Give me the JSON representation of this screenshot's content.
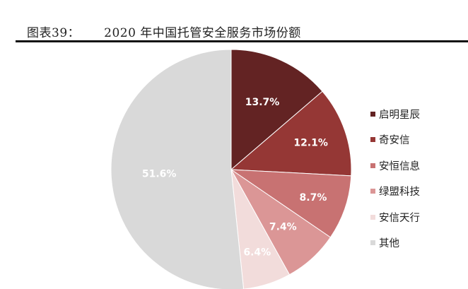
{
  "header": {
    "figure_no": "图表39：",
    "title": "2020 年中国托管安全服务市场份额"
  },
  "chart_data": {
    "type": "pie",
    "title": "2020 年中国托管安全服务市场份额",
    "start_angle_deg": 0,
    "direction": "clockwise",
    "categories": [
      "启明星辰",
      "奇安信",
      "安恒信息",
      "绿盟科技",
      "安信天行",
      "其他"
    ],
    "values": [
      13.7,
      12.1,
      8.7,
      7.4,
      6.4,
      51.6
    ],
    "labels": [
      "13.7%",
      "12.1%",
      "8.7%",
      "7.4%",
      "6.4%",
      "51.6%"
    ],
    "colors": [
      "#632323",
      "#953735",
      "#c87272",
      "#db9696",
      "#f2dcdb",
      "#d9d9d9"
    ],
    "legend_position": "right"
  },
  "legend": {
    "items": [
      {
        "label": "启明星辰",
        "color": "#632323"
      },
      {
        "label": "奇安信",
        "color": "#953735"
      },
      {
        "label": "安恒信息",
        "color": "#c87272"
      },
      {
        "label": "绿盟科技",
        "color": "#db9696"
      },
      {
        "label": "安信天行",
        "color": "#f2dcdb"
      },
      {
        "label": "其他",
        "color": "#d9d9d9"
      }
    ]
  }
}
